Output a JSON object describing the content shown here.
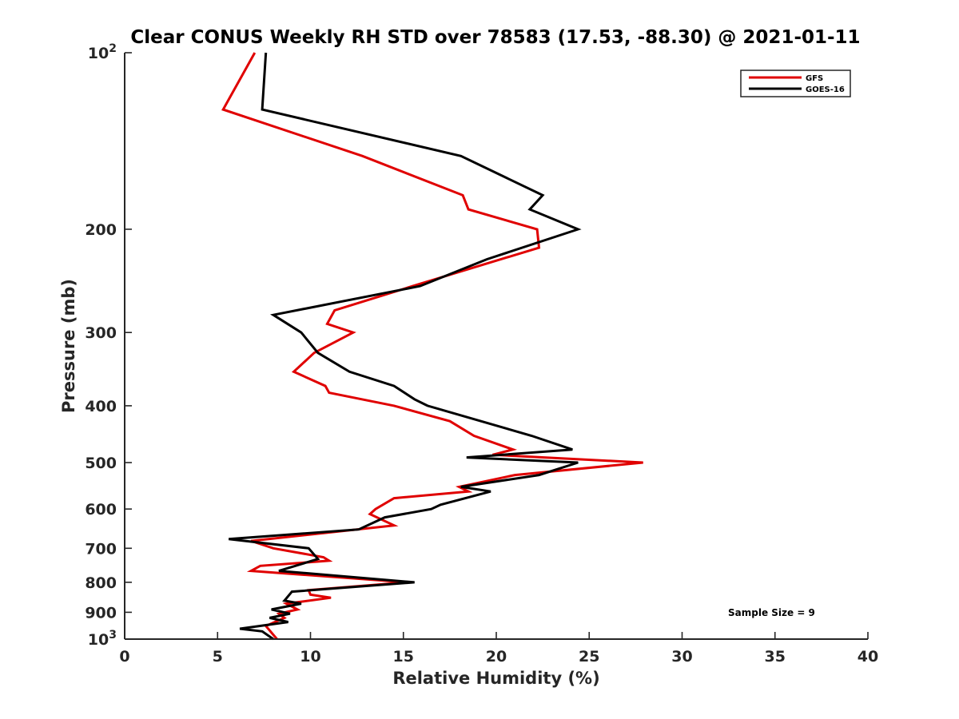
{
  "chart_data": {
    "type": "line",
    "title": "Clear CONUS Weekly RH STD over 78583 (17.53, -88.30) @ 2021-01-11",
    "xlabel": "Relative Humidity (%)",
    "ylabel": "Pressure (mb)",
    "xlim": [
      0,
      40
    ],
    "ylim": [
      100,
      1000
    ],
    "y_scale": "log",
    "y_reversed": true,
    "x_ticks": [
      "0",
      "5",
      "10",
      "15",
      "20",
      "25",
      "30",
      "35",
      "40"
    ],
    "y_ticks": [
      {
        "value": 100,
        "base": "10",
        "exp": "2"
      },
      {
        "value": 200,
        "label": "200"
      },
      {
        "value": 300,
        "label": "300"
      },
      {
        "value": 400,
        "label": "400"
      },
      {
        "value": 500,
        "label": "500"
      },
      {
        "value": 600,
        "label": "600"
      },
      {
        "value": 700,
        "label": "700"
      },
      {
        "value": 800,
        "label": "800"
      },
      {
        "value": 900,
        "label": "900"
      },
      {
        "value": 1000,
        "base": "10",
        "exp": "3"
      }
    ],
    "grid": false,
    "legend_position": "top-right",
    "annotation": "Sample Size = 9",
    "series": [
      {
        "name": "GFS",
        "color": "#e00000",
        "points": [
          [
            7.0,
            100
          ],
          [
            5.3,
            125
          ],
          [
            12.8,
            150
          ],
          [
            18.2,
            175
          ],
          [
            18.5,
            185
          ],
          [
            22.2,
            200
          ],
          [
            22.3,
            215
          ],
          [
            15.5,
            250
          ],
          [
            11.3,
            275
          ],
          [
            10.9,
            290
          ],
          [
            12.3,
            300
          ],
          [
            10.2,
            325
          ],
          [
            9.1,
            350
          ],
          [
            10.8,
            370
          ],
          [
            11.0,
            380
          ],
          [
            14.5,
            400
          ],
          [
            17.5,
            425
          ],
          [
            18.8,
            450
          ],
          [
            20.9,
            475
          ],
          [
            19.8,
            485
          ],
          [
            27.9,
            500
          ],
          [
            21.0,
            525
          ],
          [
            18.0,
            550
          ],
          [
            18.5,
            560
          ],
          [
            14.5,
            575
          ],
          [
            13.5,
            600
          ],
          [
            13.2,
            612
          ],
          [
            14.5,
            640
          ],
          [
            6.8,
            680
          ],
          [
            8.0,
            700
          ],
          [
            10.7,
            725
          ],
          [
            11.0,
            735
          ],
          [
            7.3,
            750
          ],
          [
            6.8,
            765
          ],
          [
            15.2,
            800
          ],
          [
            9.9,
            825
          ],
          [
            10.0,
            840
          ],
          [
            11.1,
            850
          ],
          [
            8.7,
            870
          ],
          [
            9.3,
            890
          ],
          [
            8.3,
            905
          ],
          [
            8.6,
            920
          ],
          [
            7.6,
            950
          ],
          [
            8.2,
            1000
          ]
        ]
      },
      {
        "name": "GOES-16",
        "color": "#000000",
        "points": [
          [
            7.6,
            100
          ],
          [
            7.4,
            125
          ],
          [
            18.1,
            150
          ],
          [
            22.5,
            175
          ],
          [
            21.8,
            185
          ],
          [
            24.4,
            200
          ],
          [
            19.5,
            225
          ],
          [
            15.9,
            250
          ],
          [
            8.0,
            280
          ],
          [
            9.5,
            300
          ],
          [
            10.4,
            325
          ],
          [
            12.1,
            350
          ],
          [
            14.5,
            370
          ],
          [
            15.6,
            390
          ],
          [
            16.3,
            400
          ],
          [
            21.9,
            450
          ],
          [
            24.1,
            475
          ],
          [
            18.4,
            490
          ],
          [
            24.4,
            500
          ],
          [
            22.3,
            525
          ],
          [
            18.1,
            550
          ],
          [
            19.7,
            560
          ],
          [
            17.0,
            590
          ],
          [
            16.5,
            600
          ],
          [
            14.0,
            620
          ],
          [
            12.6,
            650
          ],
          [
            5.6,
            675
          ],
          [
            9.9,
            700
          ],
          [
            10.4,
            730
          ],
          [
            8.3,
            765
          ],
          [
            15.6,
            800
          ],
          [
            9.0,
            830
          ],
          [
            8.6,
            860
          ],
          [
            9.5,
            870
          ],
          [
            7.9,
            890
          ],
          [
            8.9,
            905
          ],
          [
            7.8,
            920
          ],
          [
            8.8,
            935
          ],
          [
            6.2,
            960
          ],
          [
            7.4,
            970
          ],
          [
            8.0,
            1000
          ]
        ]
      }
    ]
  }
}
